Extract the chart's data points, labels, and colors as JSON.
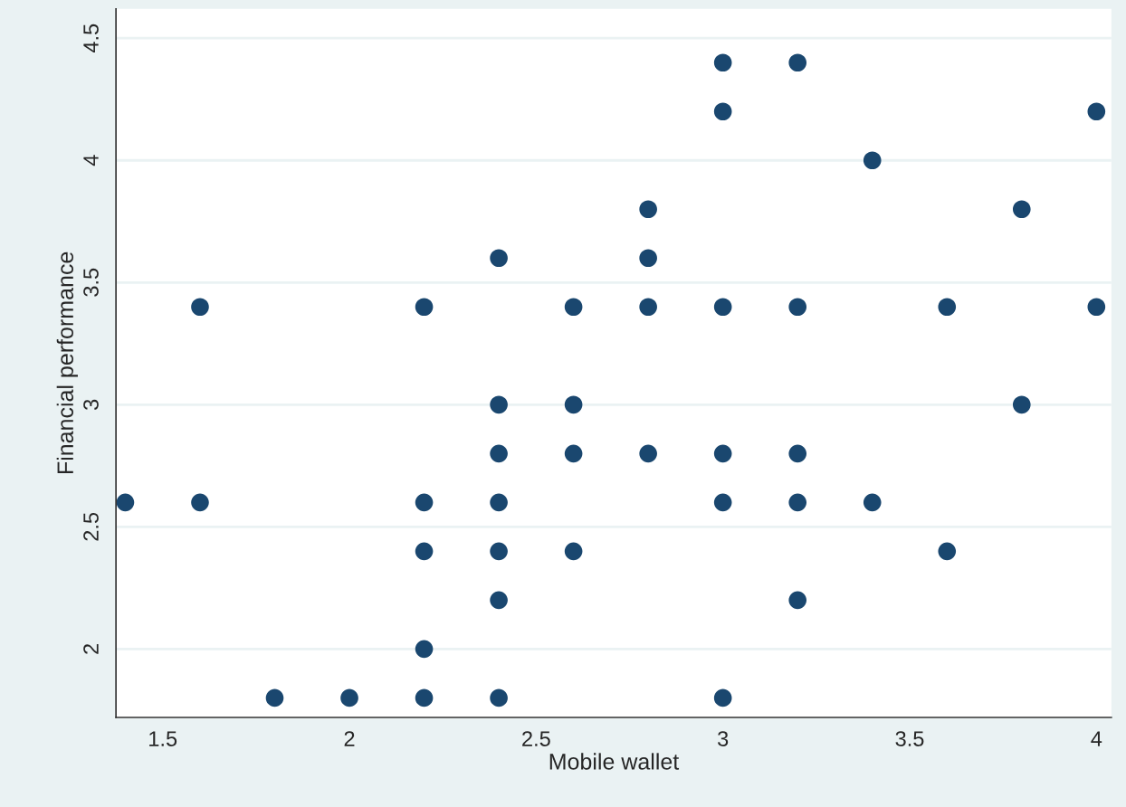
{
  "chart_data": {
    "type": "scatter",
    "xlabel": "Mobile wallet",
    "ylabel": "Financial performance",
    "x": [
      1.4,
      1.6,
      1.6,
      1.8,
      2.0,
      2.2,
      2.2,
      2.2,
      2.2,
      2.2,
      2.4,
      2.4,
      2.4,
      2.4,
      2.4,
      2.4,
      2.4,
      2.6,
      2.6,
      2.6,
      2.6,
      2.8,
      2.8,
      2.8,
      2.8,
      3.0,
      3.0,
      3.0,
      3.0,
      3.0,
      3.0,
      3.2,
      3.2,
      3.2,
      3.2,
      3.2,
      3.4,
      3.4,
      3.6,
      3.6,
      3.8,
      3.8,
      4.0,
      4.0
    ],
    "series": [
      {
        "color": "#1a476f",
        "values": [
          2.6,
          3.4,
          2.6,
          1.8,
          1.8,
          3.4,
          2.6,
          2.4,
          2.0,
          1.8,
          3.6,
          3.0,
          2.8,
          2.6,
          2.4,
          2.2,
          1.8,
          3.4,
          3.0,
          2.8,
          2.4,
          3.8,
          3.6,
          3.4,
          2.8,
          4.4,
          4.2,
          3.4,
          2.8,
          2.6,
          1.8,
          4.4,
          3.4,
          2.8,
          2.6,
          2.2,
          4.0,
          2.6,
          3.4,
          2.4,
          3.8,
          3.0,
          4.2,
          3.4
        ]
      }
    ],
    "xlim": [
      1.375,
      4.04
    ],
    "ylim": [
      1.72,
      4.62
    ],
    "xticks": [
      {
        "value": 1.5,
        "label": "1.5"
      },
      {
        "value": 2,
        "label": "2"
      },
      {
        "value": 2.5,
        "label": "2.5"
      },
      {
        "value": 3,
        "label": "3"
      },
      {
        "value": 3.5,
        "label": "3.5"
      },
      {
        "value": 4,
        "label": "4"
      }
    ],
    "yticks": [
      {
        "value": 2,
        "label": "2"
      },
      {
        "value": 2.5,
        "label": "2.5"
      },
      {
        "value": 3,
        "label": "3"
      },
      {
        "value": 3.5,
        "label": "3.5"
      },
      {
        "value": 4,
        "label": "4"
      },
      {
        "value": 4.5,
        "label": "4.5"
      }
    ],
    "grid": "y",
    "marker": "circle"
  }
}
